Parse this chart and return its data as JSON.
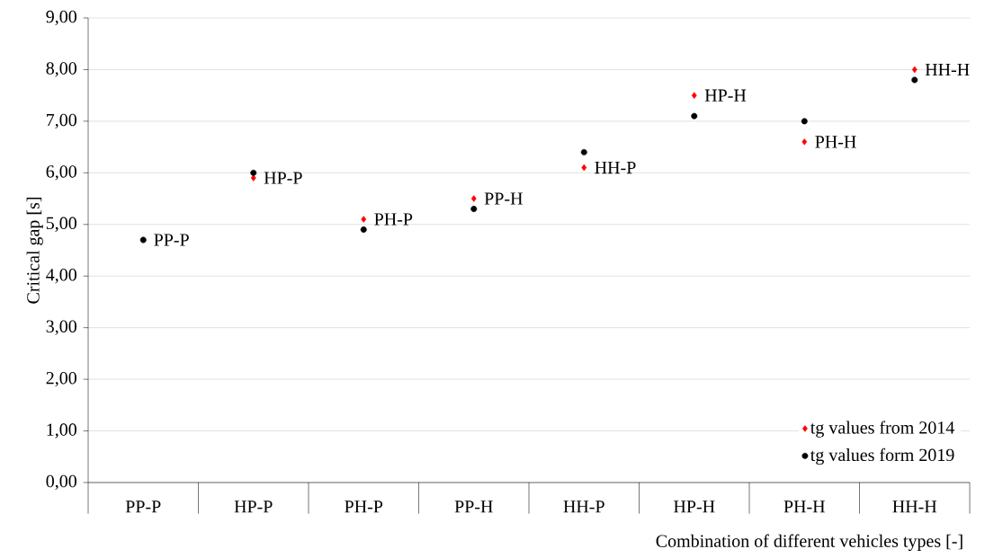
{
  "chart_data": {
    "type": "scatter",
    "xlabel": "Combination of different vehicles types [-]",
    "ylabel": "Critical gap [s]",
    "categories": [
      "PP-P",
      "HP-P",
      "PH-P",
      "PP-H",
      "HH-P",
      "HP-H",
      "PH-H",
      "HH-H"
    ],
    "series": [
      {
        "name": "tg values from 2014",
        "color": "#ff0000",
        "marker": "diamond",
        "values": [
          null,
          5.9,
          5.1,
          5.5,
          6.1,
          7.5,
          6.6,
          8.0
        ]
      },
      {
        "name": "tg values form 2019",
        "color": "#000000",
        "marker": "circle",
        "values": [
          4.7,
          6.0,
          4.9,
          5.3,
          6.4,
          7.1,
          7.0,
          7.8
        ]
      }
    ],
    "ylim": [
      0,
      9
    ],
    "yticks": [
      {
        "value": 0,
        "label": "0,00"
      },
      {
        "value": 1,
        "label": "1,00"
      },
      {
        "value": 2,
        "label": "2,00"
      },
      {
        "value": 3,
        "label": "3,00"
      },
      {
        "value": 4,
        "label": "4,00"
      },
      {
        "value": 5,
        "label": "5,00"
      },
      {
        "value": 6,
        "label": "6,00"
      },
      {
        "value": 7,
        "label": "7,00"
      },
      {
        "value": 8,
        "label": "8,00"
      },
      {
        "value": 9,
        "label": "9,00"
      }
    ],
    "grid": "y",
    "legend": "bottom right",
    "annotations": [
      {
        "text": "PP-P",
        "x": "PP-P",
        "y": 4.7
      },
      {
        "text": "HP-P",
        "x": "HP-P",
        "y": 5.9
      },
      {
        "text": "PH-P",
        "x": "PH-P",
        "y": 5.1
      },
      {
        "text": "PP-H",
        "x": "PP-H",
        "y": 5.5
      },
      {
        "text": "HH-P",
        "x": "HH-P",
        "y": 6.1
      },
      {
        "text": "HP-H",
        "x": "HP-H",
        "y": 7.5
      },
      {
        "text": "PH-H",
        "x": "PH-H",
        "y": 6.6
      },
      {
        "text": "HH-H",
        "x": "HH-H",
        "y": 8.0
      }
    ]
  }
}
